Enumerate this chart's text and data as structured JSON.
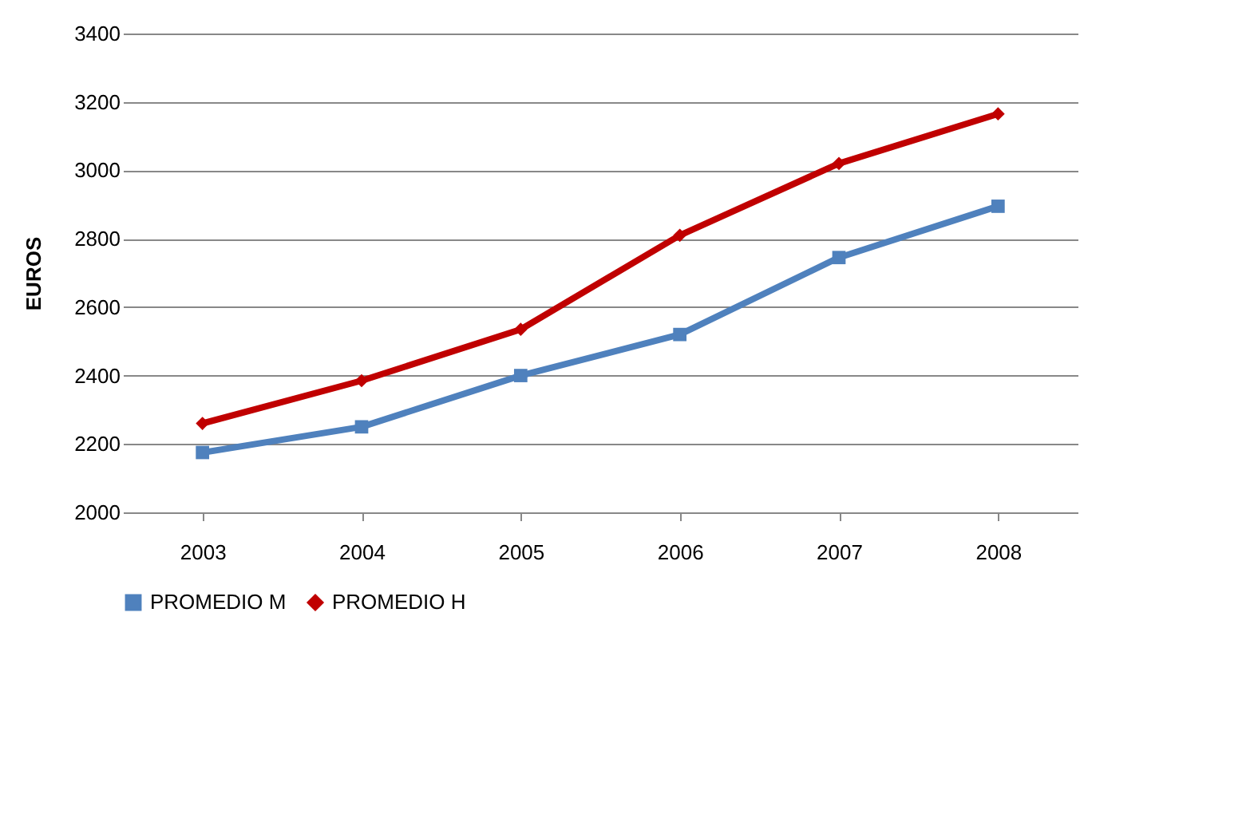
{
  "chart_data": {
    "type": "line",
    "ylabel": "EUROS",
    "categories": [
      "2003",
      "2004",
      "2005",
      "2006",
      "2007",
      "2008"
    ],
    "series": [
      {
        "name": "PROMEDIO M",
        "color": "#4f81bd",
        "marker": "square",
        "values": [
          2175,
          2250,
          2400,
          2520,
          2745,
          2895
        ]
      },
      {
        "name": "PROMEDIO H",
        "color": "#c00000",
        "marker": "diamond",
        "values": [
          2260,
          2385,
          2535,
          2810,
          3020,
          3165
        ]
      }
    ],
    "ylim": [
      2000,
      3400
    ],
    "yticks": [
      2000,
      2200,
      2400,
      2600,
      2800,
      3000,
      3200,
      3400
    ],
    "grid": "y",
    "legend": "bottom",
    "line_style": "solid"
  }
}
